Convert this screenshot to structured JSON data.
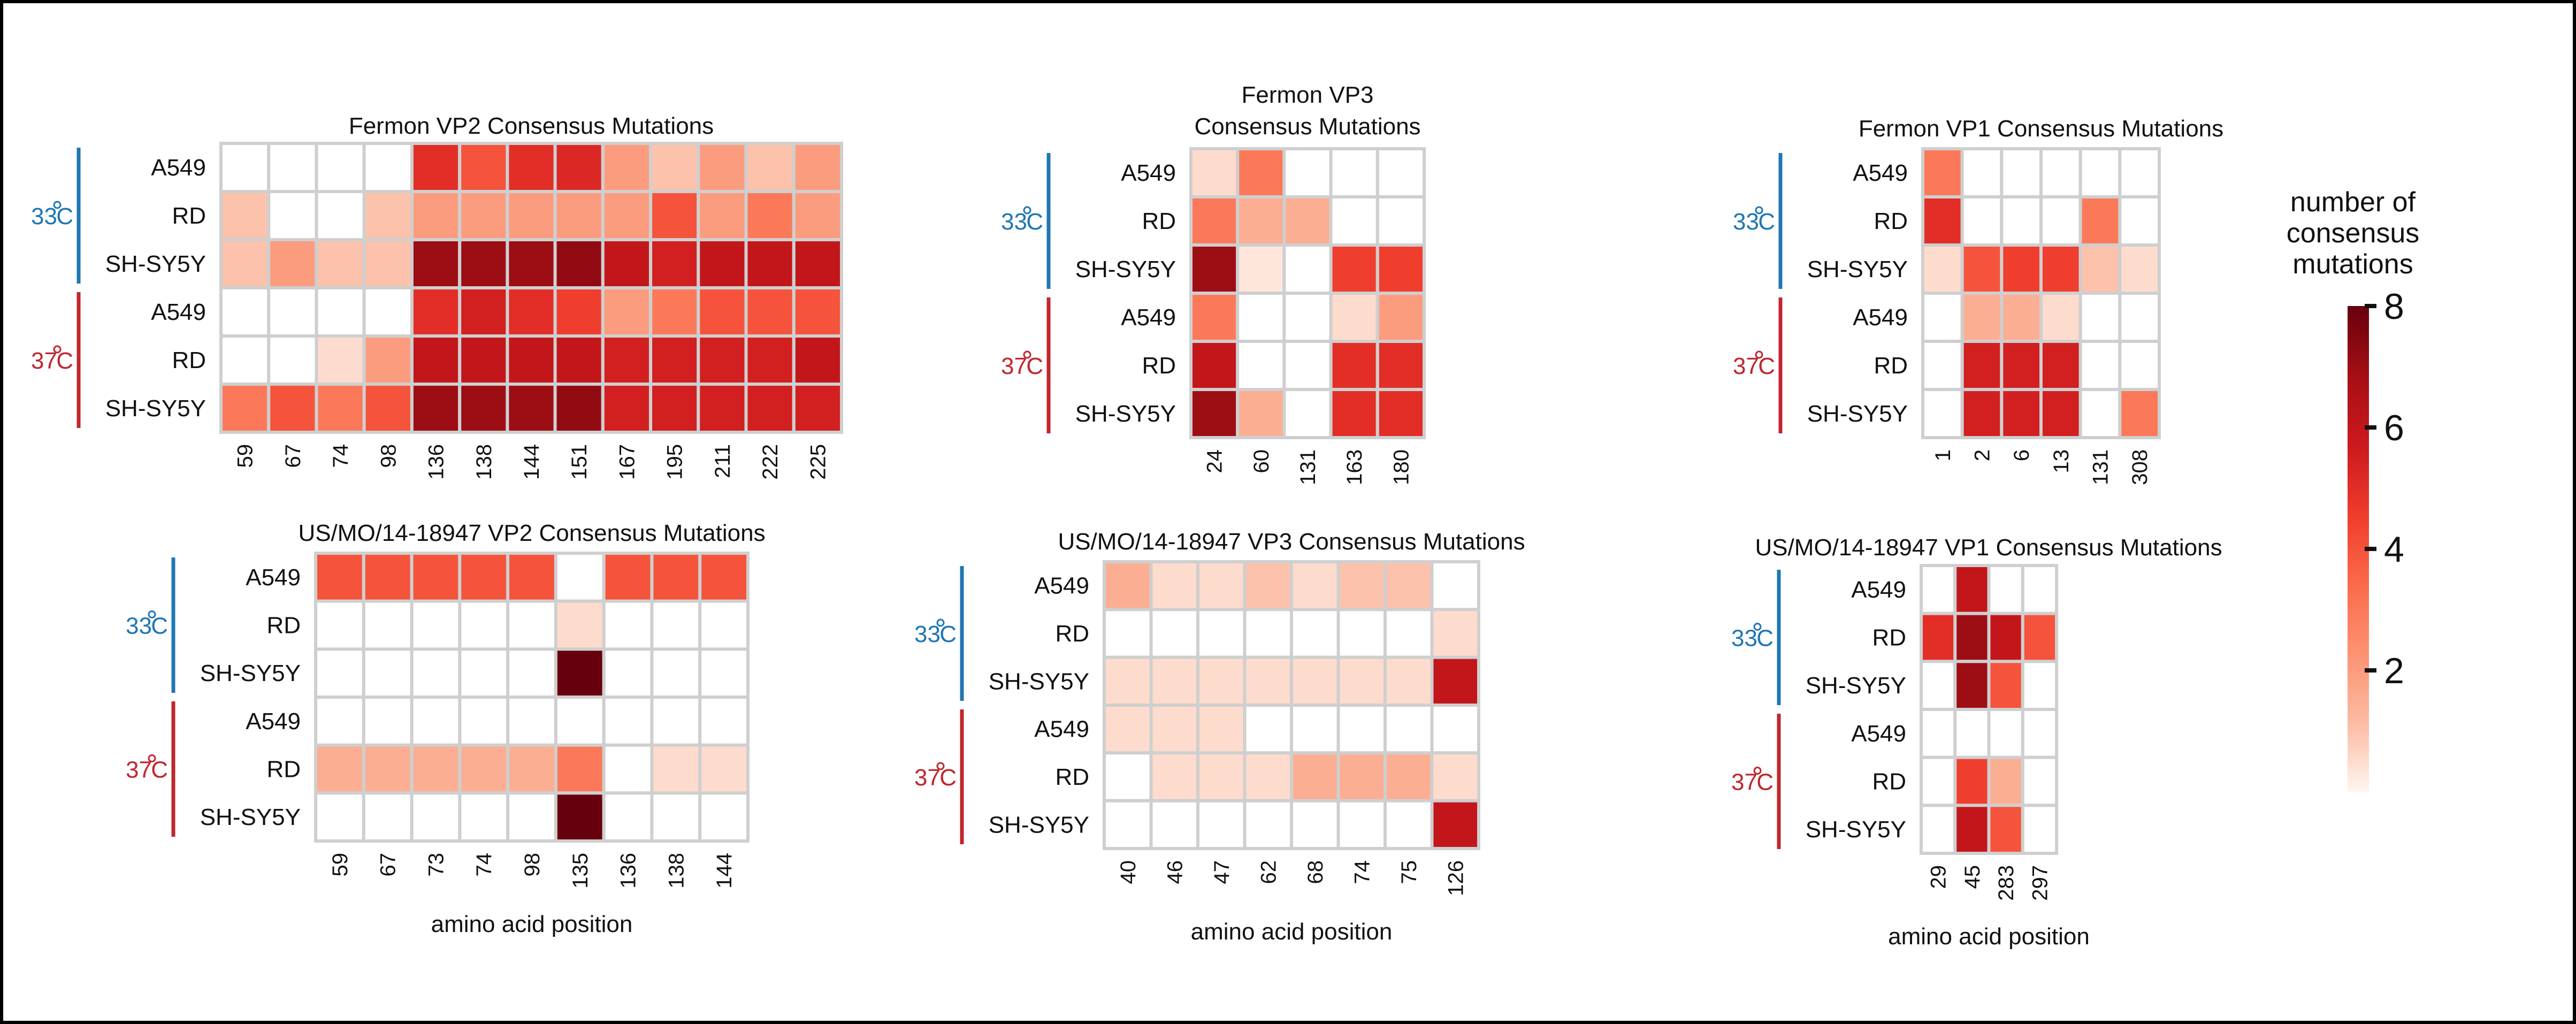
{
  "colorbar": {
    "title_lines": [
      "number of",
      "consensus",
      "mutations"
    ],
    "ticks": [
      2,
      4,
      6,
      8
    ],
    "vmin": 0,
    "vmax": 8
  },
  "colors": {
    "temp33": "#1f77b4",
    "temp37": "#c0272d",
    "cell_border": "#cfcfcf",
    "colormap": [
      "#fff5f0",
      "#fcbba1",
      "#fc9272",
      "#fb6a4a",
      "#ef3b2c",
      "#cb181d",
      "#a50f15",
      "#67000d"
    ]
  },
  "row_groups": [
    {
      "label": "33",
      "unit": "C",
      "color_key": "temp33",
      "rows": [
        "A549",
        "RD",
        "SH-SY5Y"
      ]
    },
    {
      "label": "37",
      "unit": "C",
      "color_key": "temp37",
      "rows": [
        "A549",
        "RD",
        "SH-SY5Y"
      ]
    }
  ],
  "xlabel": "amino acid position",
  "chart_data": [
    {
      "type": "heatmap",
      "title": [
        "Fermon VP2 Consensus Mutations"
      ],
      "rows": [
        "A549",
        "RD",
        "SH-SY5Y",
        "A549",
        "RD",
        "SH-SY5Y"
      ],
      "columns": [
        "59",
        "67",
        "74",
        "98",
        "136",
        "138",
        "144",
        "151",
        "167",
        "195",
        "211",
        "222",
        "225"
      ],
      "values": [
        [
          0,
          0,
          0,
          0,
          5,
          4,
          5,
          5.2,
          2,
          1,
          2,
          1,
          2
        ],
        [
          1,
          0,
          0,
          1,
          2,
          2,
          2,
          2,
          2,
          4,
          2,
          3,
          2
        ],
        [
          1,
          2,
          1,
          1,
          7,
          7,
          7,
          7.2,
          6,
          5.5,
          6,
          6,
          6
        ],
        [
          0,
          0,
          0,
          0,
          5,
          5.5,
          5,
          4.5,
          2,
          3,
          4,
          4,
          4
        ],
        [
          0,
          0,
          0.5,
          2,
          6,
          6,
          6,
          6,
          5.5,
          5.5,
          5.5,
          5.5,
          6
        ],
        [
          3,
          4,
          3,
          4,
          7,
          7,
          7,
          7.2,
          5.5,
          5.5,
          5.5,
          5.5,
          5.5
        ]
      ],
      "xlabel": ""
    },
    {
      "type": "heatmap",
      "title": [
        "Fermon VP3",
        "Consensus Mutations"
      ],
      "rows": [
        "A549",
        "RD",
        "SH-SY5Y",
        "A549",
        "RD",
        "SH-SY5Y"
      ],
      "columns": [
        "24",
        "60",
        "131",
        "163",
        "180"
      ],
      "values": [
        [
          0.5,
          3,
          0,
          0,
          0
        ],
        [
          3,
          1.5,
          1.5,
          0,
          0
        ],
        [
          7,
          0.3,
          0,
          4.5,
          4.5
        ],
        [
          3,
          0,
          0,
          0.5,
          2
        ],
        [
          6,
          0,
          0,
          5,
          5
        ],
        [
          7,
          1.5,
          0,
          5,
          5
        ]
      ],
      "xlabel": ""
    },
    {
      "type": "heatmap",
      "title": [
        "Fermon VP1 Consensus Mutations"
      ],
      "rows": [
        "A549",
        "RD",
        "SH-SY5Y",
        "A549",
        "RD",
        "SH-SY5Y"
      ],
      "columns": [
        "1",
        "2",
        "6",
        "13",
        "131",
        "308"
      ],
      "values": [
        [
          3,
          0,
          0,
          0,
          0,
          0
        ],
        [
          5,
          0,
          0,
          0,
          3,
          0
        ],
        [
          0.5,
          4,
          4.5,
          4.5,
          1,
          0.5
        ],
        [
          0,
          1.5,
          1.5,
          0.5,
          0,
          0
        ],
        [
          0,
          5.5,
          5.5,
          5.5,
          0,
          0
        ],
        [
          0,
          5.5,
          5.5,
          5.5,
          0,
          3
        ]
      ],
      "xlabel": ""
    },
    {
      "type": "heatmap",
      "title": [
        "US/MO/14-18947 VP2 Consensus Mutations"
      ],
      "rows": [
        "A549",
        "RD",
        "SH-SY5Y",
        "A549",
        "RD",
        "SH-SY5Y"
      ],
      "columns": [
        "59",
        "67",
        "73",
        "74",
        "98",
        "135",
        "136",
        "138",
        "144"
      ],
      "values": [
        [
          4,
          4,
          4,
          4,
          4,
          0,
          4,
          4,
          4
        ],
        [
          0,
          0,
          0,
          0,
          0,
          0.5,
          0,
          0,
          0
        ],
        [
          0,
          0,
          0,
          0,
          0,
          8,
          0,
          0,
          0
        ],
        [
          0,
          0,
          0,
          0,
          0,
          0,
          0,
          0,
          0
        ],
        [
          1.5,
          1.5,
          1.5,
          1.5,
          1.5,
          3,
          0,
          0.5,
          0.5
        ],
        [
          0,
          0,
          0,
          0,
          0,
          8,
          0,
          0,
          0
        ]
      ],
      "xlabel": "amino acid position"
    },
    {
      "type": "heatmap",
      "title": [
        "US/MO/14-18947 VP3 Consensus Mutations"
      ],
      "rows": [
        "A549",
        "RD",
        "SH-SY5Y",
        "A549",
        "RD",
        "SH-SY5Y"
      ],
      "columns": [
        "40",
        "46",
        "47",
        "62",
        "68",
        "74",
        "75",
        "126"
      ],
      "values": [
        [
          1.5,
          0.5,
          0.5,
          1,
          0.5,
          1,
          1,
          0
        ],
        [
          0,
          0,
          0,
          0,
          0,
          0,
          0,
          0.5
        ],
        [
          0.5,
          0.5,
          0.5,
          0.5,
          0.5,
          0.5,
          0.5,
          6
        ],
        [
          0.5,
          0.5,
          0.5,
          0,
          0,
          0,
          0,
          0
        ],
        [
          0,
          0.5,
          0.5,
          0.5,
          1.5,
          1.5,
          1.5,
          0.5
        ],
        [
          0,
          0,
          0,
          0,
          0,
          0,
          0,
          6
        ]
      ],
      "xlabel": "amino acid position"
    },
    {
      "type": "heatmap",
      "title": [
        "US/MO/14-18947 VP1 Consensus Mutations"
      ],
      "rows": [
        "A549",
        "RD",
        "SH-SY5Y",
        "A549",
        "RD",
        "SH-SY5Y"
      ],
      "columns": [
        "29",
        "45",
        "283",
        "297"
      ],
      "values": [
        [
          0,
          6,
          0,
          0
        ],
        [
          5,
          7,
          6,
          4
        ],
        [
          0,
          7,
          4,
          0
        ],
        [
          0,
          0,
          0,
          0
        ],
        [
          0,
          4.5,
          1.5,
          0
        ],
        [
          0,
          6,
          4,
          0
        ]
      ],
      "xlabel": "amino acid position"
    }
  ]
}
